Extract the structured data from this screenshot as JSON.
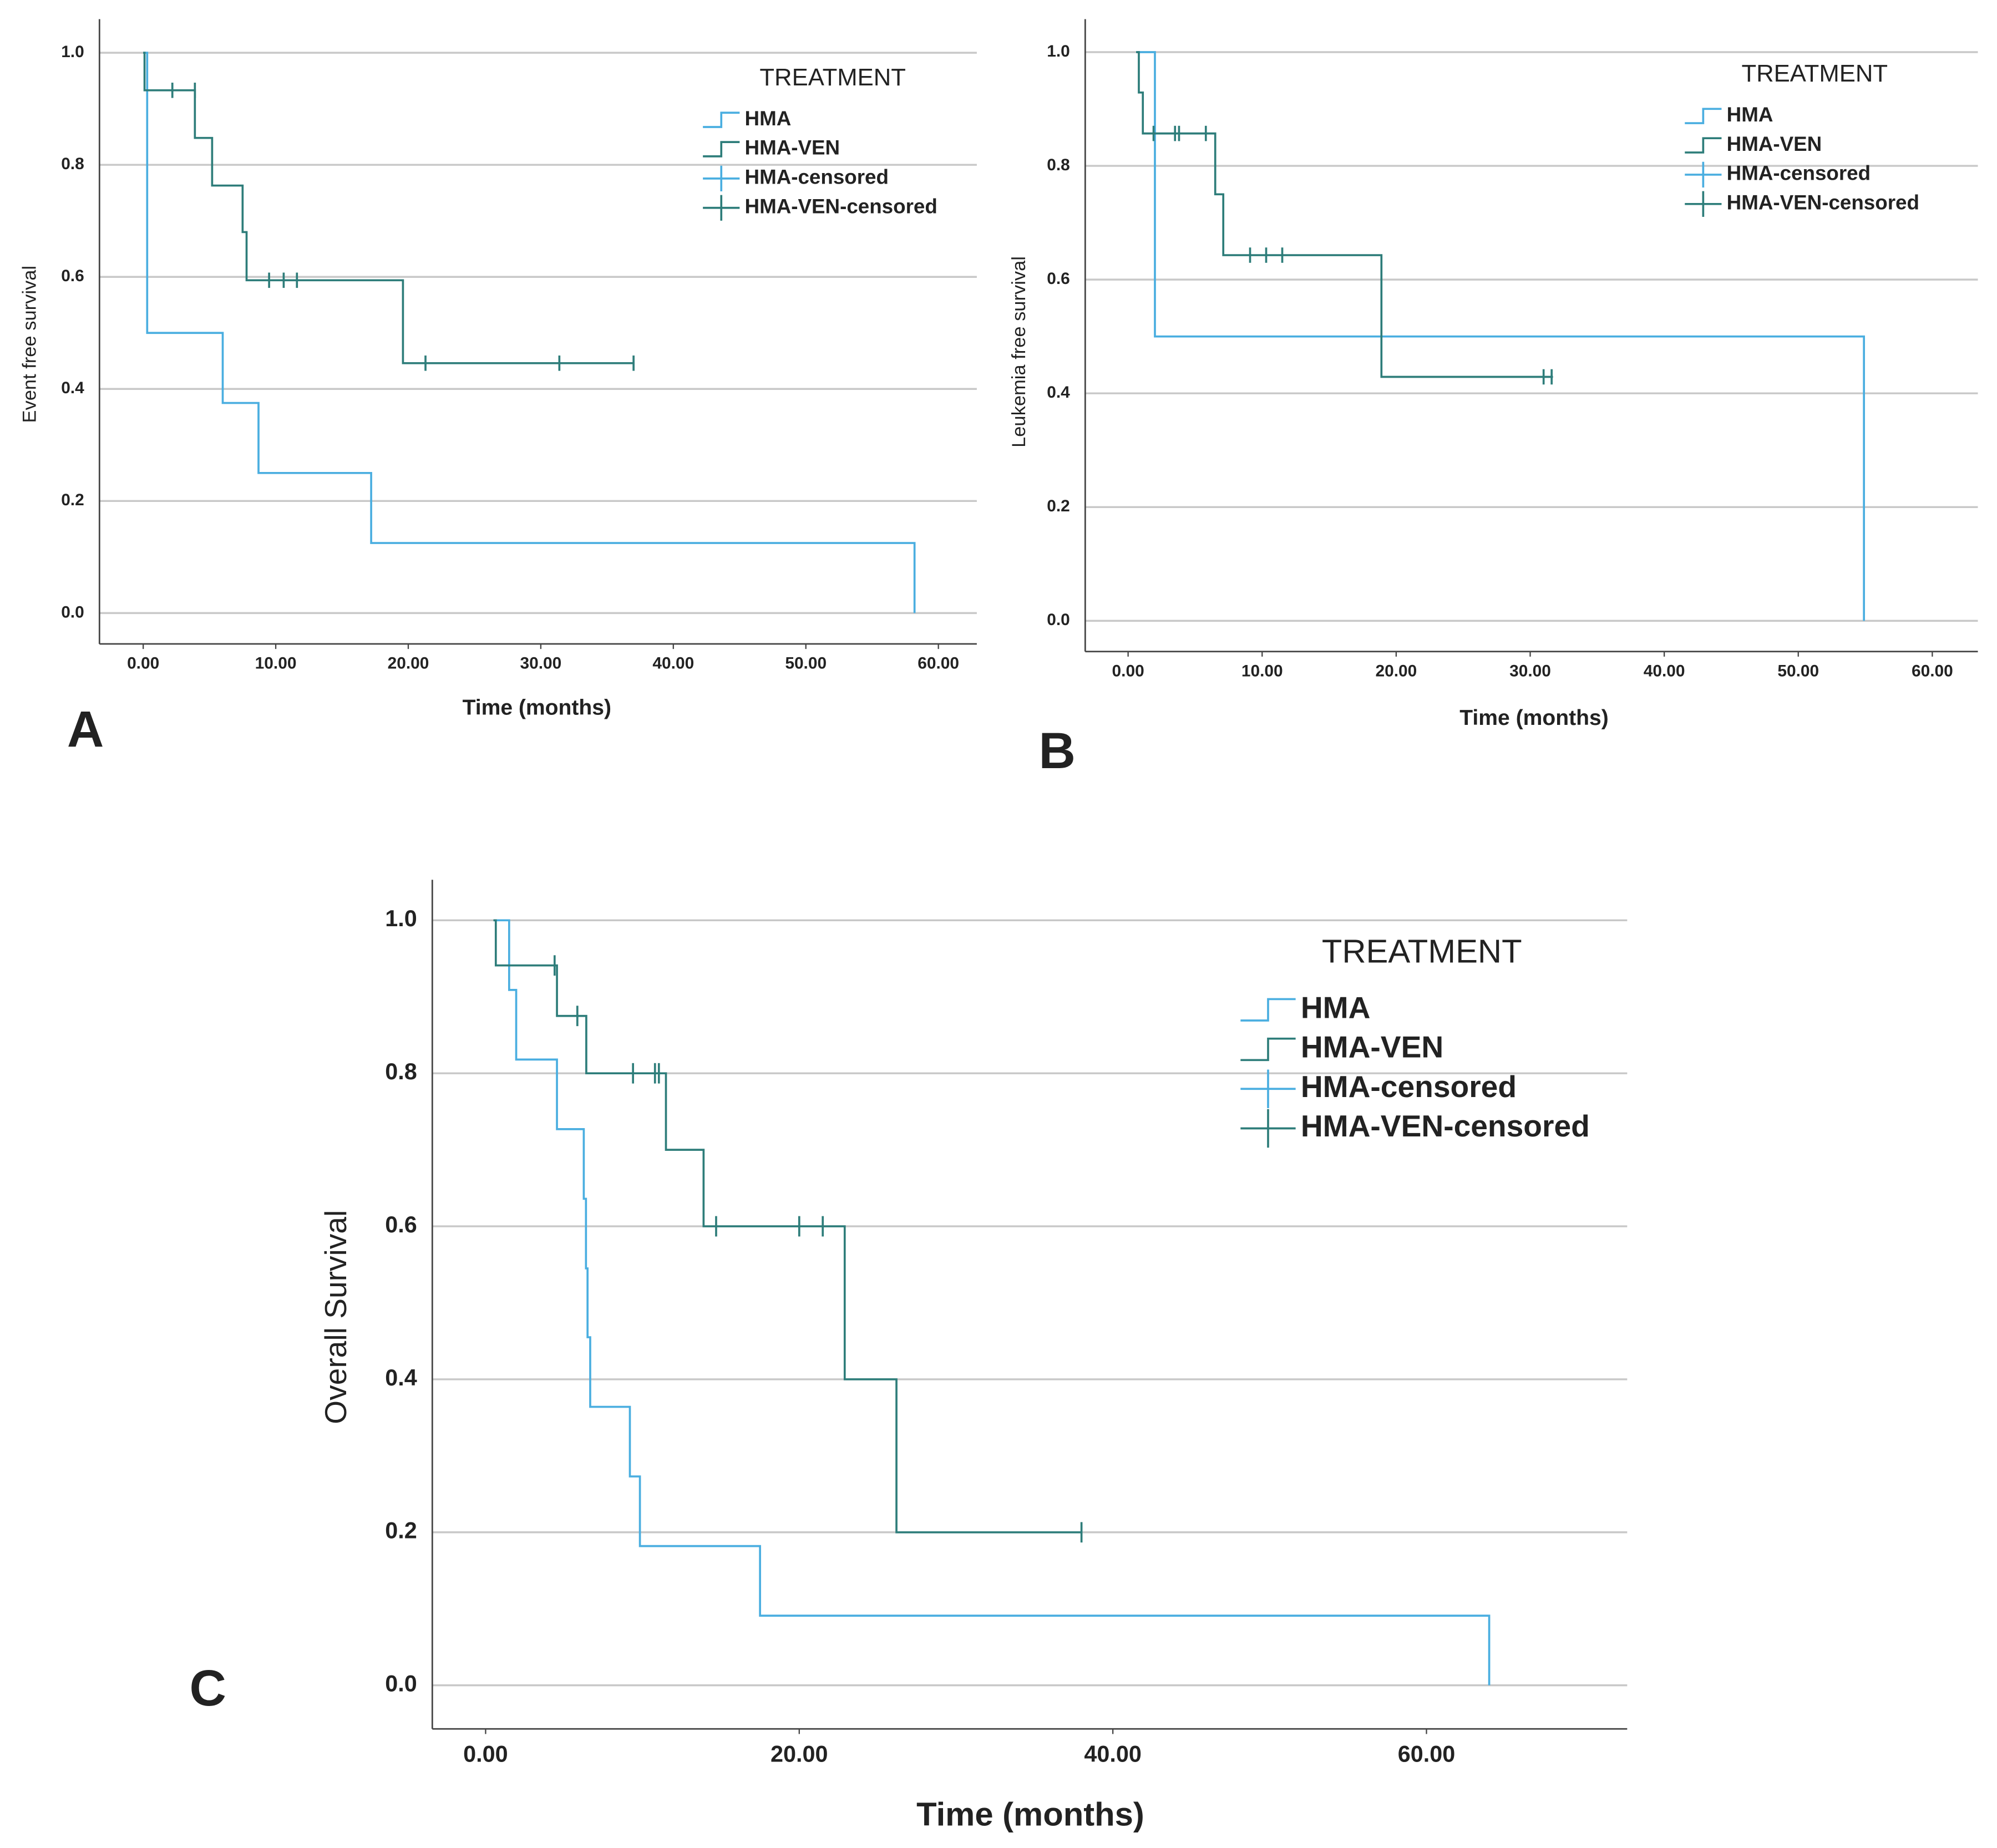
{
  "chart_data": [
    {
      "type": "line",
      "panel_label": "A",
      "xlabel": "Time (months)",
      "ylabel": "Event free survival",
      "legend_title": "TREATMENT",
      "grid": true,
      "xlim": [
        -3.3,
        62.9
      ],
      "ylim": [
        -0.055,
        1.06
      ],
      "xticks": [
        {
          "value": 0,
          "label": "0.00"
        },
        {
          "value": 10,
          "label": "10.00"
        },
        {
          "value": 20,
          "label": "20.00"
        },
        {
          "value": 30,
          "label": "30.00"
        },
        {
          "value": 40,
          "label": "40.00"
        },
        {
          "value": 50,
          "label": "50.00"
        },
        {
          "value": 60,
          "label": "60.00"
        }
      ],
      "yticks": [
        {
          "value": 0,
          "label": "0.0"
        },
        0.2,
        0.4,
        0.6,
        0.8,
        {
          "value": 1,
          "label": "1.0"
        }
      ],
      "series": [
        {
          "name": "HMA",
          "style": "step",
          "color": "#4aaee0",
          "x": [
            0,
            0.3,
            6.0,
            8.7,
            17.2,
            58.2
          ],
          "values": [
            1.0,
            0.5,
            0.375,
            0.25,
            0.125,
            0
          ]
        },
        {
          "name": "HMA-VEN",
          "style": "step",
          "color": "#2e7d7a",
          "x": [
            0,
            0.1,
            3.9,
            5.2,
            7.5,
            7.8,
            19.6,
            37.0
          ],
          "values": [
            1.0,
            0.933,
            0.848,
            0.763,
            0.68,
            0.594,
            0.446,
            0.446
          ]
        },
        {
          "name": "HMA-censored",
          "style": "censor",
          "color": "#4aaee0",
          "x": [],
          "values": []
        },
        {
          "name": "HMA-VEN-censored",
          "style": "censor",
          "color": "#2e7d7a",
          "x": [
            2.2,
            3.9,
            9.5,
            10.6,
            11.6,
            21.3,
            31.4,
            37.0
          ],
          "values": [
            0.933,
            0.933,
            0.594,
            0.594,
            0.594,
            0.446,
            0.446,
            0.446
          ]
        }
      ]
    },
    {
      "type": "line",
      "panel_label": "B",
      "xlabel": "Time (months)",
      "ylabel": "Leukemia free survival",
      "legend_title": "TREATMENT",
      "grid": true,
      "xlim": [
        -3.2,
        63.4
      ],
      "ylim": [
        -0.054,
        1.058
      ],
      "xticks": [
        {
          "value": 0,
          "label": "0.00"
        },
        {
          "value": 10,
          "label": "10.00"
        },
        {
          "value": 20,
          "label": "20.00"
        },
        {
          "value": 30,
          "label": "30.00"
        },
        {
          "value": 40,
          "label": "40.00"
        },
        {
          "value": 50,
          "label": "50.00"
        },
        {
          "value": 60,
          "label": "60.00"
        }
      ],
      "yticks": [
        {
          "value": 0,
          "label": "0.0"
        },
        0.2,
        0.4,
        0.6,
        0.8,
        {
          "value": 1,
          "label": "1.0"
        }
      ],
      "series": [
        {
          "name": "HMA",
          "style": "step",
          "color": "#4aaee0",
          "x": [
            0.6,
            2.0,
            54.9
          ],
          "values": [
            1.0,
            0.5,
            0
          ]
        },
        {
          "name": "HMA-VEN",
          "style": "step",
          "color": "#2e7d7a",
          "x": [
            0.6,
            0.8,
            1.1,
            6.5,
            7.1,
            18.9,
            31.7
          ],
          "values": [
            1.0,
            0.929,
            0.857,
            0.75,
            0.643,
            0.429,
            0.429
          ]
        },
        {
          "name": "HMA-censored",
          "style": "censor",
          "color": "#4aaee0",
          "x": [],
          "values": []
        },
        {
          "name": "HMA-VEN-censored",
          "style": "censor",
          "color": "#2e7d7a",
          "x": [
            1.9,
            3.5,
            3.8,
            5.8,
            9.1,
            10.3,
            11.5,
            31.0,
            31.6
          ],
          "values": [
            0.857,
            0.857,
            0.857,
            0.857,
            0.643,
            0.643,
            0.643,
            0.429,
            0.429
          ]
        }
      ]
    },
    {
      "type": "line",
      "panel_label": "C",
      "xlabel": "Time (months)",
      "ylabel": "Overall Survival",
      "legend_title": "TREATMENT",
      "grid": true,
      "xlim": [
        -3.4,
        72.8
      ],
      "ylim": [
        -0.057,
        1.053
      ],
      "xticks": [
        {
          "value": 0,
          "label": "0.00"
        },
        {
          "value": 20,
          "label": "20.00"
        },
        {
          "value": 40,
          "label": "40.00"
        },
        {
          "value": 60,
          "label": "60.00"
        }
      ],
      "yticks": [
        {
          "value": 0,
          "label": "0.0"
        },
        0.2,
        0.4,
        0.6,
        0.8,
        {
          "value": 1,
          "label": "1.0"
        }
      ],
      "series": [
        {
          "name": "HMA",
          "style": "step",
          "color": "#4aaee0",
          "x": [
            0.5,
            1.5,
            1.95,
            4.55,
            6.26,
            6.4,
            6.5,
            6.67,
            9.2,
            9.84,
            17.5,
            64.0
          ],
          "values": [
            1.0,
            0.909,
            0.818,
            0.727,
            0.636,
            0.545,
            0.455,
            0.364,
            0.273,
            0.182,
            0.091,
            0
          ]
        },
        {
          "name": "HMA-VEN",
          "style": "step",
          "color": "#2e7d7a",
          "x": [
            0.5,
            0.65,
            4.55,
            6.42,
            11.5,
            13.9,
            22.9,
            26.2,
            38.0
          ],
          "values": [
            1.0,
            0.941,
            0.875,
            0.8,
            0.7,
            0.6,
            0.4,
            0.2,
            0.2
          ]
        },
        {
          "name": "HMA-censored",
          "style": "censor",
          "color": "#4aaee0",
          "x": [],
          "values": []
        },
        {
          "name": "HMA-VEN-censored",
          "style": "censor",
          "color": "#2e7d7a",
          "x": [
            4.4,
            5.85,
            9.4,
            10.8,
            11.05,
            14.7,
            20.0,
            21.5,
            38.0
          ],
          "values": [
            0.941,
            0.875,
            0.8,
            0.8,
            0.8,
            0.6,
            0.6,
            0.6,
            0.2
          ]
        }
      ]
    }
  ]
}
